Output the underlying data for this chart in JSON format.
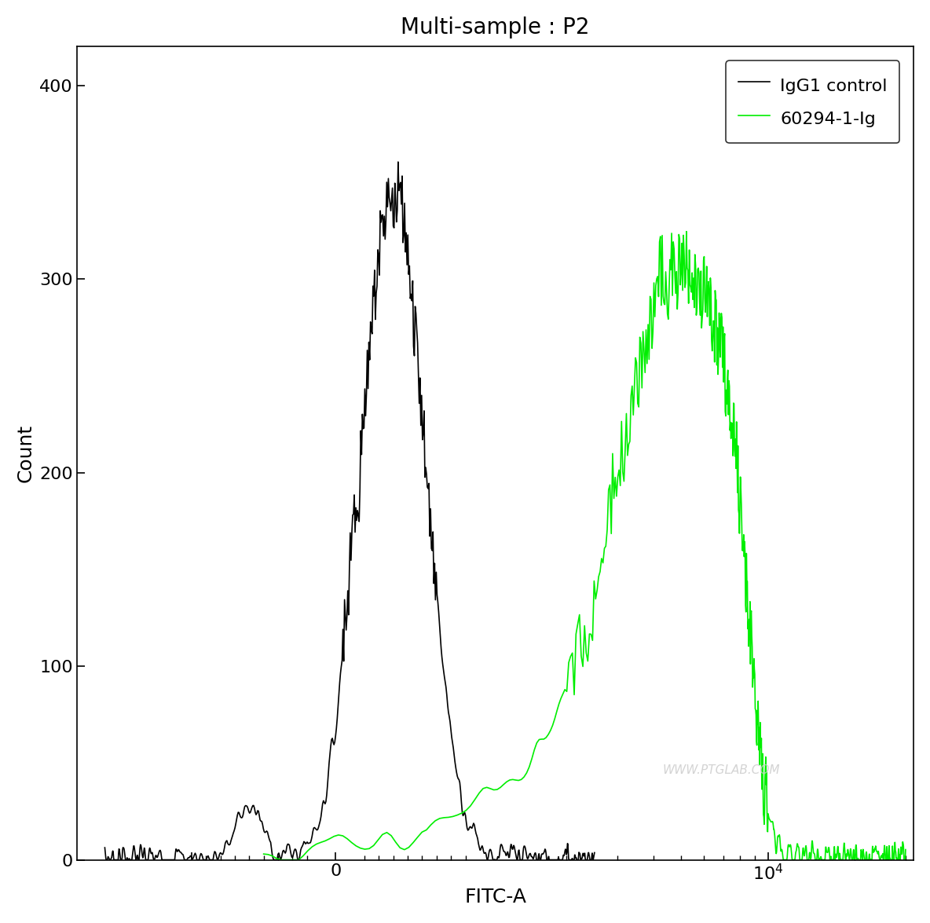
{
  "title": "Multi-sample : P2",
  "xlabel": "FITC-A",
  "ylabel": "Count",
  "background_color": "#ffffff",
  "plot_background": "#ffffff",
  "legend_labels": [
    "IgG1 control",
    "60294-1-Ig"
  ],
  "legend_colors": [
    "#000000",
    "#00ee00"
  ],
  "watermark": "WWW.PTGLAB.COM",
  "ylim": [
    0,
    420
  ],
  "yticks": [
    0,
    100,
    200,
    300,
    400
  ],
  "line_width": 1.2,
  "title_fontsize": 20,
  "label_fontsize": 18,
  "tick_fontsize": 16,
  "legend_fontsize": 16
}
